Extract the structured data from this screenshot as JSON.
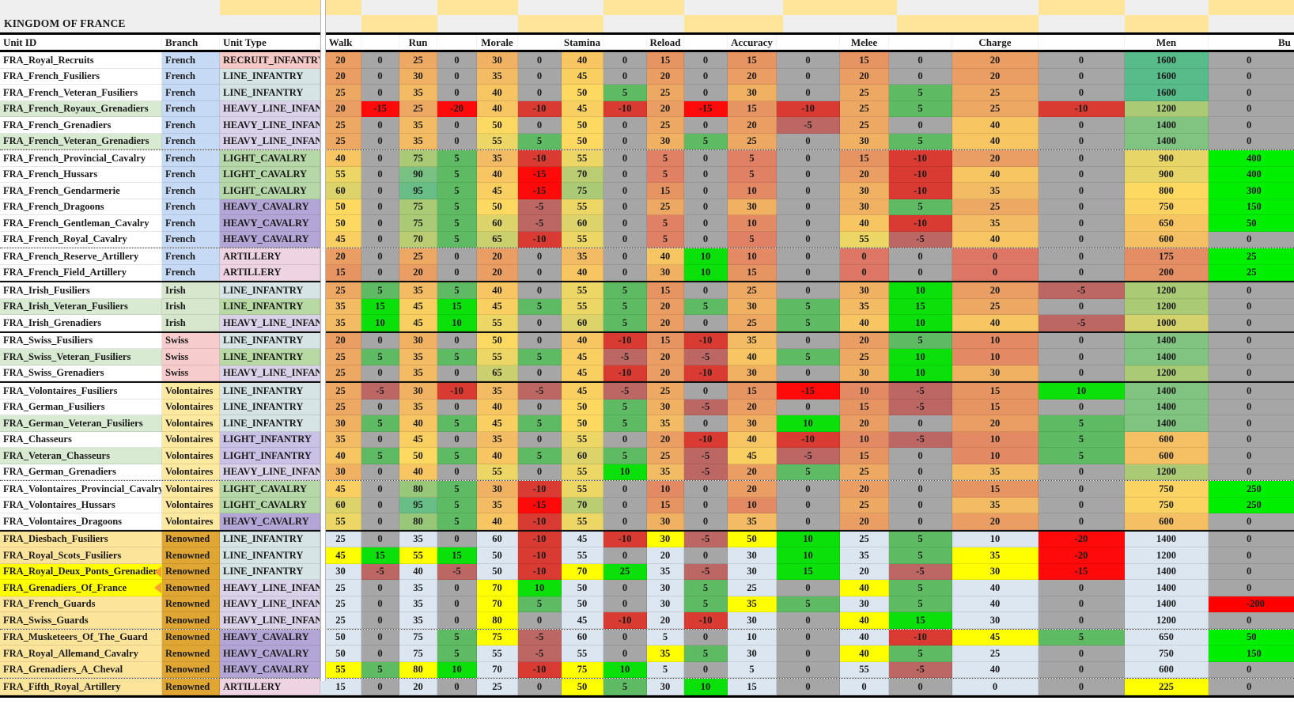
{
  "title": "KINGDOM OF FRANCE",
  "headers": {
    "unit_id": "Unit ID",
    "branch": "Branch",
    "unit_type": "Unit Type",
    "stats": [
      "Walk",
      "Run",
      "Morale",
      "Stamina",
      "Reload",
      "Accuracy",
      "Melee",
      "Charge"
    ],
    "men": "Men",
    "bu": "Bu"
  },
  "colors": {
    "checker_yellow": "#ffe599",
    "checker_gray": "#efefef",
    "mod_zero": "#a6a6a6",
    "mod_plus_small": "#5fbb63",
    "mod_plus_big": "#0be00b",
    "mod_minus_small": "#bd6764",
    "mod_minus_mid": "#d93a32",
    "mod_minus_big": "#ff0a0a",
    "bu_positive": "#00ee00",
    "bu_negative": "#fe0000",
    "renowned_cell": "#dce6f1",
    "highlight_yellow": "#ffff00",
    "scale_low": "#dd7664",
    "scale_mid": "#fdd962",
    "scale_high": "#57bb8a",
    "id_green": "#d9ead3",
    "id_gold": "#fde49b",
    "branch_colors": {
      "French": "#c7daf5",
      "Irish": "#d7e7cd",
      "Swiss": "#f6cccd",
      "Volontaires": "#fee9a0",
      "Renowned": "#e0a633"
    },
    "type_colors": {
      "RECRUIT_INFANTRY": "#f5c9c6",
      "LINE_INFANTRY": "#d6e4e6",
      "HEAVY_LINE_INFANTRY": "#d9d2e9",
      "LIGHT_INFANTRY": "#c9c1e6",
      "LIGHT_CAVALRY": "#b6d7a8",
      "HEAVY_CAVALRY": "#b3a6d6",
      "ARTILLERY": "#eed4e2"
    },
    "type_green_variant": "#b8d8a4"
  },
  "rows": [
    {
      "id": "FRA_Royal_Recruits",
      "branch": "French",
      "type": "RECRUIT_INFANTRY",
      "v": [
        20,
        25,
        30,
        40,
        15,
        15,
        15,
        20
      ],
      "m": [
        0,
        0,
        0,
        0,
        0,
        0,
        0,
        0
      ],
      "men": 1600,
      "bu": 0
    },
    {
      "id": "FRA_French_Fusiliers",
      "branch": "French",
      "type": "LINE_INFANTRY",
      "v": [
        20,
        30,
        35,
        45,
        20,
        20,
        20,
        20
      ],
      "m": [
        0,
        0,
        0,
        0,
        0,
        0,
        0,
        0
      ],
      "men": 1600,
      "bu": 0
    },
    {
      "id": "FRA_French_Veteran_Fusiliers",
      "branch": "French",
      "type": "LINE_INFANTRY",
      "v": [
        25,
        35,
        40,
        50,
        25,
        30,
        25,
        25
      ],
      "m": [
        0,
        0,
        0,
        5,
        0,
        0,
        5,
        0
      ],
      "men": 1600,
      "bu": 0
    },
    {
      "id": "FRA_French_Royaux_Grenadiers",
      "branch": "French",
      "type": "HEAVY_LINE_INFANTRY",
      "v": [
        20,
        25,
        40,
        45,
        20,
        15,
        25,
        25
      ],
      "m": [
        -15,
        -20,
        -10,
        -10,
        -15,
        -10,
        5,
        -10
      ],
      "men": 1200,
      "bu": 0,
      "idbg": "green"
    },
    {
      "id": "FRA_French_Grenadiers",
      "branch": "French",
      "type": "HEAVY_LINE_INFANTRY",
      "v": [
        25,
        35,
        50,
        50,
        25,
        20,
        25,
        40
      ],
      "m": [
        0,
        0,
        0,
        0,
        0,
        -5,
        0,
        0
      ],
      "men": 1400,
      "bu": 0
    },
    {
      "id": "FRA_French_Veteran_Grenadiers",
      "branch": "French",
      "type": "HEAVY_LINE_INFANTRY",
      "v": [
        25,
        35,
        55,
        50,
        30,
        25,
        30,
        40
      ],
      "m": [
        0,
        0,
        5,
        0,
        5,
        0,
        5,
        0
      ],
      "men": 1400,
      "bu": 0,
      "idbg": "green",
      "sep": "dotted"
    },
    {
      "id": "FRA_French_Provincial_Cavalry",
      "branch": "French",
      "type": "LIGHT_CAVALRY",
      "v": [
        40,
        75,
        35,
        55,
        5,
        5,
        15,
        20
      ],
      "m": [
        0,
        5,
        -10,
        0,
        0,
        0,
        -10,
        0
      ],
      "men": 900,
      "bu": 400
    },
    {
      "id": "FRA_French_Hussars",
      "branch": "French",
      "type": "LIGHT_CAVALRY",
      "v": [
        55,
        90,
        40,
        70,
        5,
        5,
        20,
        40
      ],
      "m": [
        0,
        5,
        -15,
        0,
        0,
        0,
        -10,
        0
      ],
      "men": 900,
      "bu": 400
    },
    {
      "id": "FRA_French_Gendarmerie",
      "branch": "French",
      "type": "LIGHT_CAVALRY",
      "v": [
        60,
        95,
        45,
        75,
        15,
        10,
        30,
        35
      ],
      "m": [
        0,
        5,
        -15,
        0,
        0,
        0,
        -10,
        0
      ],
      "men": 800,
      "bu": 300
    },
    {
      "id": "FRA_French_Dragoons",
      "branch": "French",
      "type": "HEAVY_CAVALRY",
      "v": [
        50,
        75,
        50,
        55,
        25,
        30,
        30,
        25
      ],
      "m": [
        0,
        5,
        -5,
        0,
        0,
        0,
        5,
        0
      ],
      "men": 750,
      "bu": 150
    },
    {
      "id": "FRA_French_Gentleman_Cavalry",
      "branch": "French",
      "type": "HEAVY_CAVALRY",
      "v": [
        50,
        75,
        60,
        60,
        5,
        10,
        40,
        35
      ],
      "m": [
        0,
        5,
        -5,
        0,
        0,
        0,
        -10,
        0
      ],
      "men": 650,
      "bu": 50
    },
    {
      "id": "FRA_French_Royal_Cavalry",
      "branch": "French",
      "type": "HEAVY_CAVALRY",
      "v": [
        45,
        70,
        65,
        55,
        5,
        5,
        55,
        40
      ],
      "m": [
        0,
        5,
        -10,
        0,
        0,
        0,
        -5,
        0
      ],
      "men": 600,
      "bu": 0,
      "sep": "dotted"
    },
    {
      "id": "FRA_French_Reserve_Artillery",
      "branch": "French",
      "type": "ARTILLERY",
      "v": [
        20,
        25,
        20,
        35,
        40,
        10,
        0,
        0
      ],
      "m": [
        0,
        0,
        0,
        0,
        10,
        0,
        0,
        0
      ],
      "men": 175,
      "bu": 25
    },
    {
      "id": "FRA_French_Field_Artillery",
      "branch": "French",
      "type": "ARTILLERY",
      "v": [
        15,
        20,
        20,
        40,
        30,
        15,
        0,
        0
      ],
      "m": [
        0,
        0,
        0,
        0,
        10,
        0,
        0,
        0
      ],
      "men": 200,
      "bu": 25,
      "sep": "solid"
    },
    {
      "id": "FRA_Irish_Fusiliers",
      "branch": "Irish",
      "type": "LINE_INFANTRY",
      "v": [
        25,
        35,
        40,
        55,
        15,
        25,
        30,
        20
      ],
      "m": [
        5,
        5,
        0,
        5,
        0,
        0,
        10,
        -5
      ],
      "men": 1200,
      "bu": 0
    },
    {
      "id": "FRA_Irish_Veteran_Fusiliers",
      "branch": "Irish",
      "type": "LINE_INFANTRY",
      "v": [
        35,
        45,
        45,
        55,
        20,
        30,
        35,
        25
      ],
      "m": [
        15,
        15,
        5,
        5,
        5,
        5,
        15,
        0
      ],
      "men": 1200,
      "bu": 0,
      "idbg": "green",
      "typeGreen": true
    },
    {
      "id": "FRA_Irish_Grenadiers",
      "branch": "Irish",
      "type": "HEAVY_LINE_INFANTRY",
      "v": [
        35,
        45,
        55,
        60,
        20,
        25,
        40,
        40
      ],
      "m": [
        10,
        10,
        0,
        5,
        0,
        5,
        10,
        -5
      ],
      "men": 1000,
      "bu": 0,
      "sep": "solid"
    },
    {
      "id": "FRA_Swiss_Fusiliers",
      "branch": "Swiss",
      "type": "LINE_INFANTRY",
      "v": [
        20,
        30,
        50,
        40,
        15,
        35,
        20,
        10
      ],
      "m": [
        0,
        0,
        0,
        -10,
        -10,
        0,
        5,
        0
      ],
      "men": 1400,
      "bu": 0
    },
    {
      "id": "FRA_Swiss_Veteran_Fusiliers",
      "branch": "Swiss",
      "type": "LINE_INFANTRY",
      "v": [
        25,
        35,
        55,
        45,
        20,
        40,
        25,
        10
      ],
      "m": [
        5,
        5,
        5,
        -5,
        -5,
        5,
        10,
        0
      ],
      "men": 1400,
      "bu": 0,
      "idbg": "green",
      "typeGreen": true
    },
    {
      "id": "FRA_Swiss_Grenadiers",
      "branch": "Swiss",
      "type": "HEAVY_LINE_INFANTRY",
      "v": [
        25,
        35,
        65,
        45,
        20,
        30,
        30,
        30
      ],
      "m": [
        0,
        0,
        0,
        -10,
        -10,
        0,
        10,
        0
      ],
      "men": 1200,
      "bu": 0,
      "sep": "solid"
    },
    {
      "id": "FRA_Volontaires_Fusiliers",
      "branch": "Volontaires",
      "type": "LINE_INFANTRY",
      "v": [
        25,
        30,
        35,
        45,
        25,
        15,
        10,
        15
      ],
      "m": [
        -5,
        -10,
        -5,
        -5,
        0,
        -15,
        -5,
        10
      ],
      "men": 1400,
      "bu": 0
    },
    {
      "id": "FRA_German_Fusiliers",
      "branch": "Volontaires",
      "type": "LINE_INFANTRY",
      "v": [
        25,
        35,
        40,
        50,
        30,
        20,
        15,
        15
      ],
      "m": [
        0,
        0,
        0,
        5,
        -5,
        0,
        -5,
        0
      ],
      "men": 1400,
      "bu": 0
    },
    {
      "id": "FRA_German_Veteran_Fusiliers",
      "branch": "Volontaires",
      "type": "LINE_INFANTRY",
      "v": [
        30,
        40,
        45,
        50,
        35,
        30,
        20,
        20
      ],
      "m": [
        5,
        5,
        5,
        5,
        0,
        10,
        0,
        5
      ],
      "men": 1400,
      "bu": 0,
      "idbg": "green"
    },
    {
      "id": "FRA_Chasseurs",
      "branch": "Volontaires",
      "type": "LIGHT_INFANTRY",
      "v": [
        35,
        45,
        35,
        55,
        20,
        40,
        10,
        10
      ],
      "m": [
        0,
        0,
        0,
        0,
        -10,
        -10,
        -5,
        5
      ],
      "men": 600,
      "bu": 0
    },
    {
      "id": "FRA_Veteran_Chasseurs",
      "branch": "Volontaires",
      "type": "LIGHT_INFANTRY",
      "v": [
        40,
        50,
        40,
        60,
        25,
        45,
        15,
        10
      ],
      "m": [
        5,
        5,
        5,
        5,
        -5,
        -5,
        0,
        5
      ],
      "men": 600,
      "bu": 0,
      "idbg": "green"
    },
    {
      "id": "FRA_German_Grenadiers",
      "branch": "Volontaires",
      "type": "HEAVY_LINE_INFANTRY",
      "v": [
        30,
        40,
        55,
        55,
        35,
        20,
        25,
        35
      ],
      "m": [
        0,
        0,
        0,
        10,
        -5,
        5,
        0,
        0
      ],
      "men": 1200,
      "bu": 0,
      "sep": "dotted"
    },
    {
      "id": "FRA_Volontaires_Provincial_Cavalry",
      "branch": "Volontaires",
      "type": "LIGHT_CAVALRY",
      "v": [
        45,
        80,
        30,
        55,
        10,
        20,
        20,
        15
      ],
      "m": [
        0,
        5,
        -10,
        0,
        0,
        0,
        0,
        0
      ],
      "men": 750,
      "bu": 250
    },
    {
      "id": "FRA_Volontaires_Hussars",
      "branch": "Volontaires",
      "type": "LIGHT_CAVALRY",
      "v": [
        60,
        95,
        35,
        70,
        15,
        10,
        25,
        35
      ],
      "m": [
        0,
        5,
        -15,
        0,
        0,
        0,
        0,
        0
      ],
      "men": 750,
      "bu": 250
    },
    {
      "id": "FRA_Volontaires_Dragoons",
      "branch": "Volontaires",
      "type": "HEAVY_CAVALRY",
      "v": [
        55,
        80,
        40,
        55,
        30,
        35,
        20,
        20
      ],
      "m": [
        0,
        5,
        -10,
        0,
        0,
        0,
        0,
        0
      ],
      "men": 600,
      "bu": 0,
      "sep": "solid"
    },
    {
      "id": "FRA_Diesbach_Fusiliers",
      "branch": "Renowned",
      "type": "LINE_INFANTRY",
      "v": [
        25,
        35,
        60,
        45,
        30,
        50,
        25,
        10
      ],
      "m": [
        0,
        0,
        -10,
        -10,
        -5,
        10,
        5,
        -20
      ],
      "men": 1400,
      "bu": 0,
      "idbg": "gold",
      "ren": true,
      "yv": [
        4,
        5
      ]
    },
    {
      "id": "FRA_Royal_Scots_Fusiliers",
      "branch": "Renowned",
      "type": "LINE_INFANTRY",
      "v": [
        45,
        55,
        50,
        55,
        20,
        30,
        35,
        35
      ],
      "m": [
        15,
        15,
        -10,
        0,
        0,
        10,
        5,
        -20
      ],
      "men": 1200,
      "bu": 0,
      "idbg": "gold",
      "ren": true,
      "yv": [
        0,
        1,
        7
      ]
    },
    {
      "id": "FRA_Royal_Deux_Ponts_Grenadiers",
      "branch": "Renowned",
      "type": "LINE_INFANTRY",
      "v": [
        30,
        40,
        50,
        70,
        35,
        30,
        20,
        30
      ],
      "m": [
        -5,
        -5,
        -10,
        25,
        -5,
        15,
        -5,
        -15
      ],
      "men": 1400,
      "bu": 0,
      "idbg": "yellow",
      "note": true,
      "ren": true,
      "yv": [
        3,
        7
      ]
    },
    {
      "id": "FRA_Grenadiers_Of_France",
      "branch": "Renowned",
      "type": "HEAVY_LINE_INFANTRY",
      "v": [
        25,
        35,
        70,
        50,
        30,
        25,
        40,
        40
      ],
      "m": [
        0,
        0,
        10,
        0,
        5,
        0,
        5,
        0
      ],
      "men": 1400,
      "bu": 0,
      "idbg": "yellow",
      "note": true,
      "ren": true,
      "yv": [
        2,
        6
      ]
    },
    {
      "id": "FRA_French_Guards",
      "branch": "Renowned",
      "type": "HEAVY_LINE_INFANTRY",
      "v": [
        25,
        35,
        70,
        50,
        30,
        35,
        30,
        40
      ],
      "m": [
        0,
        0,
        5,
        0,
        5,
        5,
        5,
        0
      ],
      "men": 1400,
      "bu": -200,
      "idbg": "gold",
      "ren": true,
      "yv": [
        2,
        5
      ]
    },
    {
      "id": "FRA_Swiss_Guards",
      "branch": "Renowned",
      "type": "HEAVY_LINE_INFANTRY",
      "v": [
        25,
        35,
        80,
        45,
        20,
        30,
        40,
        30
      ],
      "m": [
        0,
        0,
        0,
        -10,
        -10,
        0,
        15,
        0
      ],
      "men": 1200,
      "bu": 0,
      "idbg": "gold",
      "ren": true,
      "yv": [
        2,
        6
      ],
      "sep": "dotted"
    },
    {
      "id": "FRA_Musketeers_Of_The_Guard",
      "branch": "Renowned",
      "type": "HEAVY_CAVALRY",
      "v": [
        50,
        75,
        75,
        60,
        5,
        10,
        40,
        45
      ],
      "m": [
        0,
        5,
        -5,
        0,
        0,
        0,
        -10,
        5
      ],
      "men": 650,
      "bu": 50,
      "idbg": "gold",
      "ren": true,
      "yv": [
        2,
        7
      ]
    },
    {
      "id": "FRA_Royal_Allemand_Cavalry",
      "branch": "Renowned",
      "type": "HEAVY_CAVALRY",
      "v": [
        50,
        75,
        55,
        55,
        35,
        30,
        40,
        25
      ],
      "m": [
        0,
        5,
        -5,
        0,
        5,
        0,
        5,
        0
      ],
      "men": 750,
      "bu": 150,
      "idbg": "gold",
      "ren": true,
      "yv": [
        4,
        6
      ]
    },
    {
      "id": "FRA_Grenadiers_A_Cheval",
      "branch": "Renowned",
      "type": "HEAVY_CAVALRY",
      "v": [
        55,
        80,
        70,
        75,
        5,
        5,
        55,
        40
      ],
      "m": [
        5,
        10,
        -10,
        10,
        0,
        0,
        -5,
        0
      ],
      "men": 600,
      "bu": 0,
      "idbg": "gold",
      "ren": true,
      "yv": [
        0,
        1,
        3
      ],
      "sep": "dotted"
    },
    {
      "id": "FRA_Fifth_Royal_Artillery",
      "branch": "Renowned",
      "type": "ARTILLERY",
      "v": [
        15,
        20,
        25,
        50,
        30,
        15,
        0,
        0
      ],
      "m": [
        0,
        0,
        0,
        5,
        10,
        0,
        0,
        0
      ],
      "men": 225,
      "bu": 0,
      "idbg": "gold",
      "ren": true,
      "yv": [
        3
      ],
      "menY": true
    }
  ]
}
